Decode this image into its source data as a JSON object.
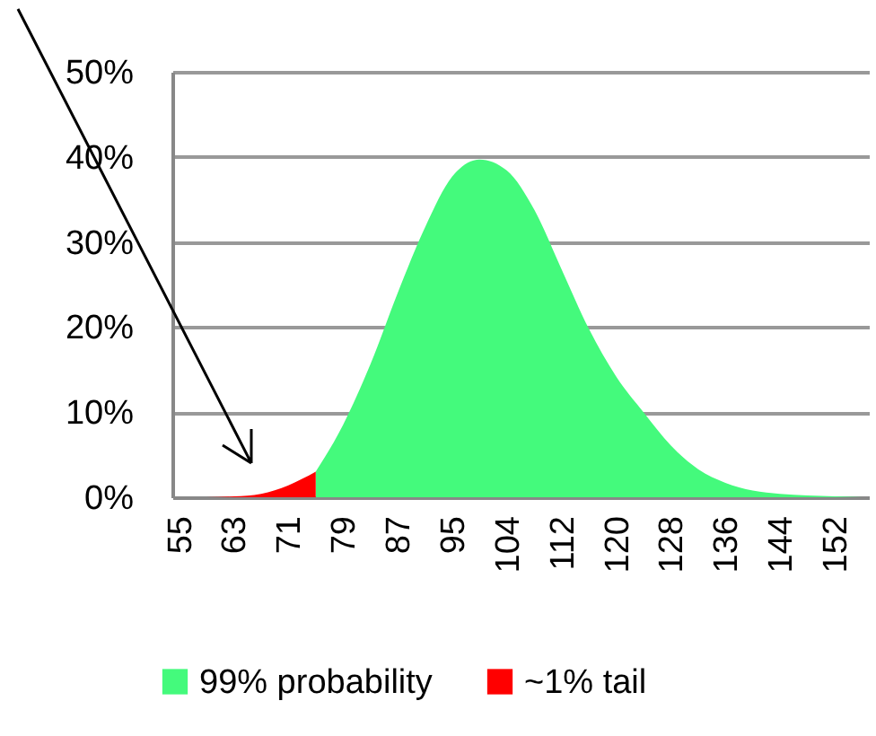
{
  "chart_data": {
    "type": "area",
    "categories": [
      "55",
      null,
      "63",
      null,
      "71",
      null,
      "79",
      null,
      "87",
      null,
      "95",
      null,
      "104",
      null,
      "112",
      null,
      "120",
      null,
      "128",
      null,
      "136",
      null,
      "144",
      null,
      "152",
      null
    ],
    "series": [
      {
        "name": "99% probability",
        "color": "#44fa7c",
        "values": [
          null,
          null,
          null,
          null,
          null,
          3,
          8.5,
          15.6,
          24,
          31.7,
          37.7,
          39.7,
          38.4,
          33.8,
          26.8,
          19.8,
          14.2,
          10,
          6.1,
          3.3,
          1.7,
          0.8,
          0.4,
          0.2,
          0.1,
          0
        ]
      },
      {
        "name": "~1% tail",
        "color": "#ff0000",
        "values": [
          0,
          0,
          0.1,
          0.4,
          1.4,
          3,
          null,
          null,
          null,
          null,
          null,
          null,
          null,
          null,
          null,
          null,
          null,
          null,
          null,
          null,
          null,
          null,
          null,
          null,
          null,
          null
        ]
      }
    ],
    "ylim": [
      0,
      50
    ],
    "yticks": [
      {
        "value": 0,
        "label": "0%"
      },
      {
        "value": 10,
        "label": "10%"
      },
      {
        "value": 20,
        "label": "20%"
      },
      {
        "value": 30,
        "label": "30%"
      },
      {
        "value": 40,
        "label": "40%"
      },
      {
        "value": 50,
        "label": "50%"
      }
    ],
    "grid": "y",
    "legend": "bottom"
  }
}
